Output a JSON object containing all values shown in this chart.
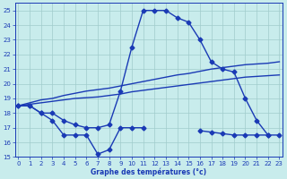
{
  "hours": [
    0,
    1,
    2,
    3,
    4,
    5,
    6,
    7,
    8,
    9,
    10,
    11,
    12,
    13,
    14,
    15,
    16,
    17,
    18,
    19,
    20,
    21,
    22,
    23
  ],
  "temp": [
    18.5,
    18.5,
    18.0,
    18.0,
    17.5,
    17.2,
    17.0,
    17.0,
    17.2,
    19.5,
    22.5,
    25.0,
    25.0,
    25.0,
    24.5,
    24.2,
    23.0,
    21.5,
    21.0,
    20.8,
    19.0,
    17.5,
    16.5,
    null
  ],
  "line1": [
    18.5,
    18.7,
    18.9,
    19.0,
    19.2,
    19.35,
    19.5,
    19.6,
    19.7,
    19.85,
    20.0,
    20.15,
    20.3,
    20.45,
    20.6,
    20.7,
    20.85,
    21.0,
    21.1,
    21.2,
    21.3,
    21.35,
    21.4,
    21.5
  ],
  "line2": [
    18.5,
    18.6,
    18.7,
    18.8,
    18.9,
    19.0,
    19.05,
    19.1,
    19.2,
    19.3,
    19.45,
    19.55,
    19.65,
    19.75,
    19.85,
    19.95,
    20.05,
    20.15,
    20.25,
    20.35,
    20.45,
    20.5,
    20.55,
    20.6
  ],
  "dew": [
    18.5,
    18.5,
    18.0,
    17.5,
    16.5,
    16.5,
    16.5,
    15.2,
    15.5,
    17.0,
    17.0,
    17.0,
    null,
    null,
    null,
    null,
    16.8,
    16.7,
    16.6,
    16.5,
    16.5,
    16.5,
    16.5,
    16.5
  ],
  "ylim": [
    15,
    25.5
  ],
  "xlim": [
    -0.3,
    23.3
  ],
  "yticks": [
    15,
    16,
    17,
    18,
    19,
    20,
    21,
    22,
    23,
    24,
    25
  ],
  "xticks": [
    0,
    1,
    2,
    3,
    4,
    5,
    6,
    7,
    8,
    9,
    10,
    11,
    12,
    13,
    14,
    15,
    16,
    17,
    18,
    19,
    20,
    21,
    22,
    23
  ],
  "line_color": "#1a3ab5",
  "bg_color": "#c8ecec",
  "xlabel": "Graphe des températures (°c)",
  "grid_color": "#a0cccc",
  "marker": "D",
  "markersize": 2.5,
  "linewidth": 1.0
}
